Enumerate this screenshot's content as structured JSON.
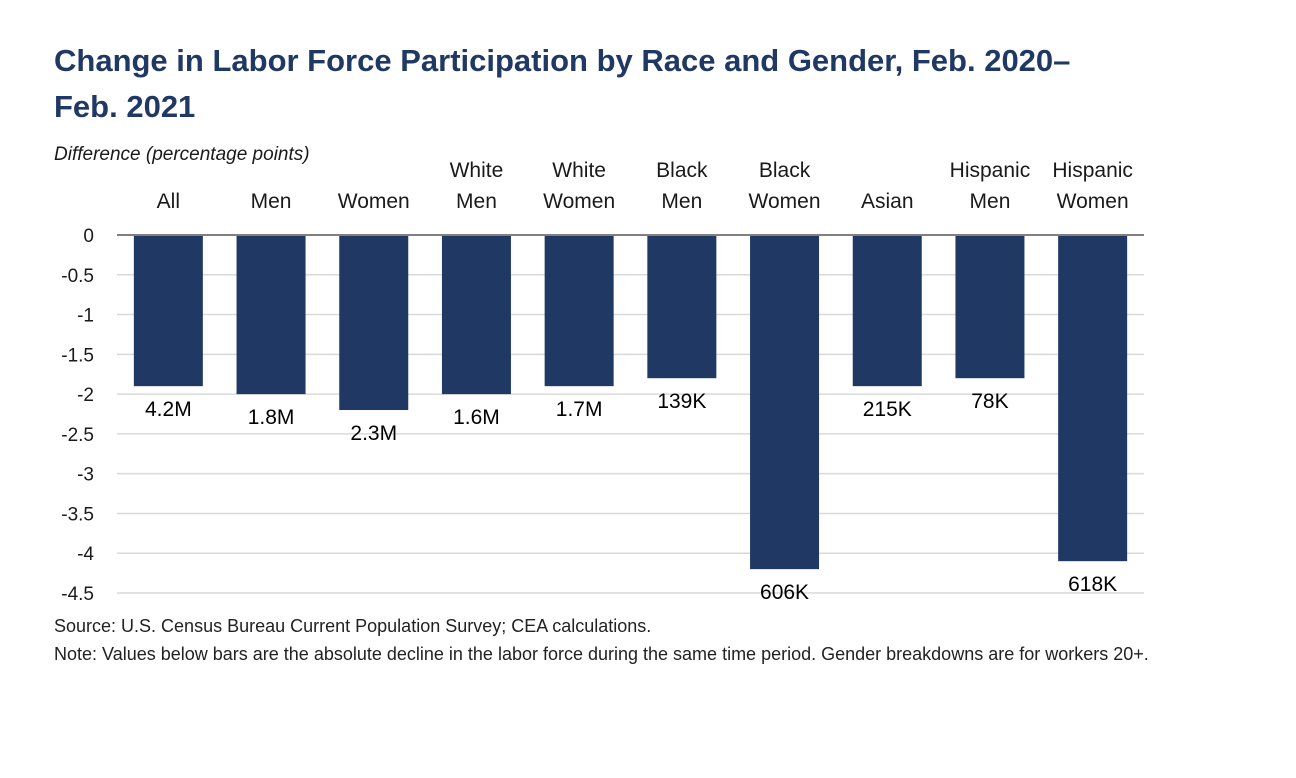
{
  "chart_data": {
    "type": "bar",
    "title": "Change in Labor Force Participation by Race and Gender, Feb. 2020–Feb. 2021",
    "ylabel": "Difference (percentage points)",
    "xlabel": "",
    "ylim": [
      -4.5,
      0
    ],
    "yticks": [
      "0",
      "-0.5",
      "-1",
      "-1.5",
      "-2",
      "-2.5",
      "-3",
      "-3.5",
      "-4",
      "-4.5"
    ],
    "ytick_values": [
      0,
      -0.5,
      -1,
      -1.5,
      -2,
      -2.5,
      -3,
      -3.5,
      -4,
      -4.5
    ],
    "categories": [
      [
        "All"
      ],
      [
        "Men"
      ],
      [
        "Women"
      ],
      [
        "White",
        "Men"
      ],
      [
        "White",
        "Women"
      ],
      [
        "Black",
        "Men"
      ],
      [
        "Black",
        "Women"
      ],
      [
        "Asian"
      ],
      [
        "Hispanic",
        "Men"
      ],
      [
        "Hispanic",
        "Women"
      ]
    ],
    "values": [
      -1.9,
      -2.0,
      -2.2,
      -2.0,
      -1.9,
      -1.8,
      -4.2,
      -1.9,
      -1.8,
      -4.1
    ],
    "data_labels": [
      "4.2M",
      "1.8M",
      "2.3M",
      "1.6M",
      "1.7M",
      "139K",
      "606K",
      "215K",
      "78K",
      "618K"
    ],
    "grid": true,
    "legend": "none",
    "colors": {
      "bar": "#1f3864",
      "grid": "#d9d9d9",
      "axis": "#808080",
      "title": "#1f3864"
    }
  },
  "source": "Source: U.S. Census Bureau Current Population Survey; CEA calculations.",
  "note": "Note: Values below bars are the absolute decline in the labor force during the same time period. Gender breakdowns are for workers 20+."
}
